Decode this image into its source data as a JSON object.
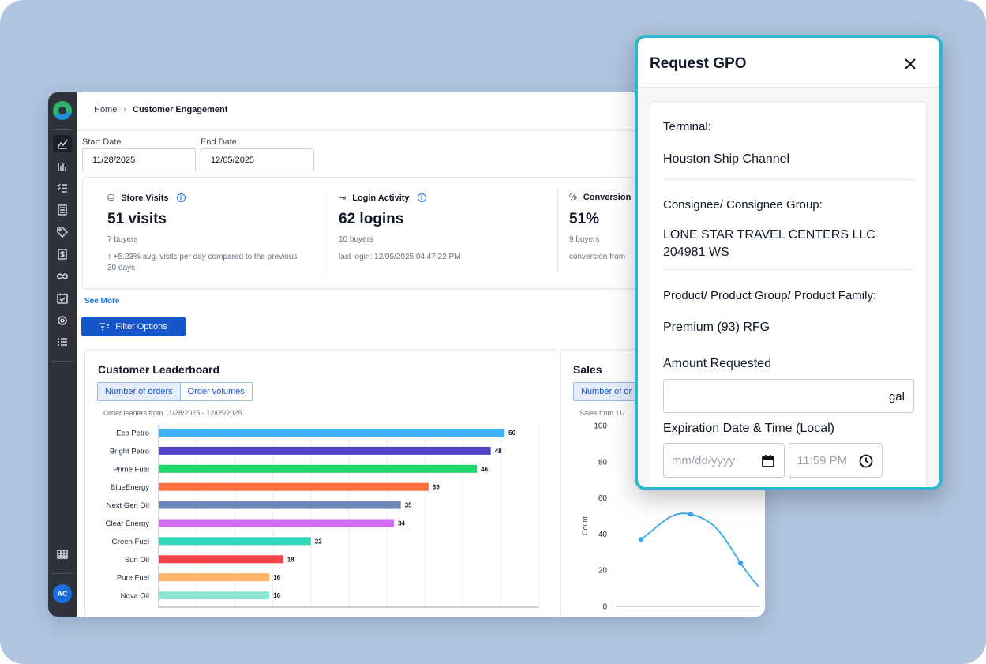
{
  "app": {
    "breadcrumb": {
      "home": "Home",
      "separator": "›",
      "current": "Customer Engagement"
    },
    "start_date": {
      "label": "Start Date",
      "value": "11/28/2025"
    },
    "end_date": {
      "label": "End Date",
      "value": "12/05/2025"
    },
    "stats": [
      {
        "title": "Store Visits",
        "icon": "store-icon",
        "value": "51 visits",
        "sub": "7 buyers",
        "note_arrow": "↑",
        "note": "+5.23% avg. visits per day compared to the previous 30 days"
      },
      {
        "title": "Login Activity",
        "icon": "login-icon",
        "value": "62 logins",
        "sub": "10 buyers",
        "note": "last login: 12/05/2025 04:47:22 PM"
      },
      {
        "title": "Conversion",
        "icon": "percent-icon",
        "value": "51%",
        "sub": "9 buyers",
        "note": "conversion from"
      }
    ],
    "see_more": "See More",
    "filter_button": "Filter Options",
    "leaderboard": {
      "title": "Customer Leaderboard",
      "tabs": [
        "Number of orders",
        "Order volumes"
      ],
      "subtitle": "Order leaders from 11/28/2025 - 12/05/2025"
    },
    "sales": {
      "title": "Sales",
      "tab": "Number of or",
      "subtitle": "Sales from 11/"
    },
    "sidebar_user_initials": "AC"
  },
  "chart_data": [
    {
      "type": "bar",
      "orientation": "horizontal",
      "title": "Customer Leaderboard",
      "categories": [
        "Eco Petro",
        "Bright Petro",
        "Prime Fuel",
        "BlueEnergy",
        "Next Gen Oil",
        "Clear Energy",
        "Green Fuel",
        "Sun Oil",
        "Pure Fuel",
        "Nova Oil"
      ],
      "values": [
        50,
        48,
        46,
        39,
        35,
        34,
        22,
        18,
        16,
        16
      ],
      "colors": [
        "#3fb1f5",
        "#5044c7",
        "#1fd66a",
        "#fb6f3e",
        "#6f86b8",
        "#d16df2",
        "#33d6b8",
        "#f2424a",
        "#ffb46b",
        "#8ee5d5"
      ],
      "xlim": [
        0,
        55
      ]
    },
    {
      "type": "line",
      "title": "Sales",
      "ylabel": "Count",
      "ylim": [
        0,
        100
      ],
      "yticks": [
        0,
        20,
        40,
        60,
        80,
        100
      ],
      "x": [
        1,
        2,
        3
      ],
      "series": [
        {
          "values": [
            37,
            51,
            24
          ]
        }
      ],
      "color": "#3aa8ec"
    }
  ],
  "modal": {
    "title": "Request GPO",
    "terminal_label": "Terminal:",
    "terminal_value": "Houston Ship Channel",
    "consignee_label": "Consignee/ Consignee Group:",
    "consignee_value_line1": "LONE STAR TRAVEL CENTERS LLC",
    "consignee_value_line2": "204981 WS",
    "product_label": "Product/ Product Group/ Product Family:",
    "product_value": "Premium (93) RFG",
    "amount_label": "Amount Requested",
    "amount_unit": "gal",
    "expiration_label": "Expiration Date & Time (Local)",
    "date_placeholder": "mm/dd/yyyy",
    "time_placeholder": "11:59 PM"
  }
}
